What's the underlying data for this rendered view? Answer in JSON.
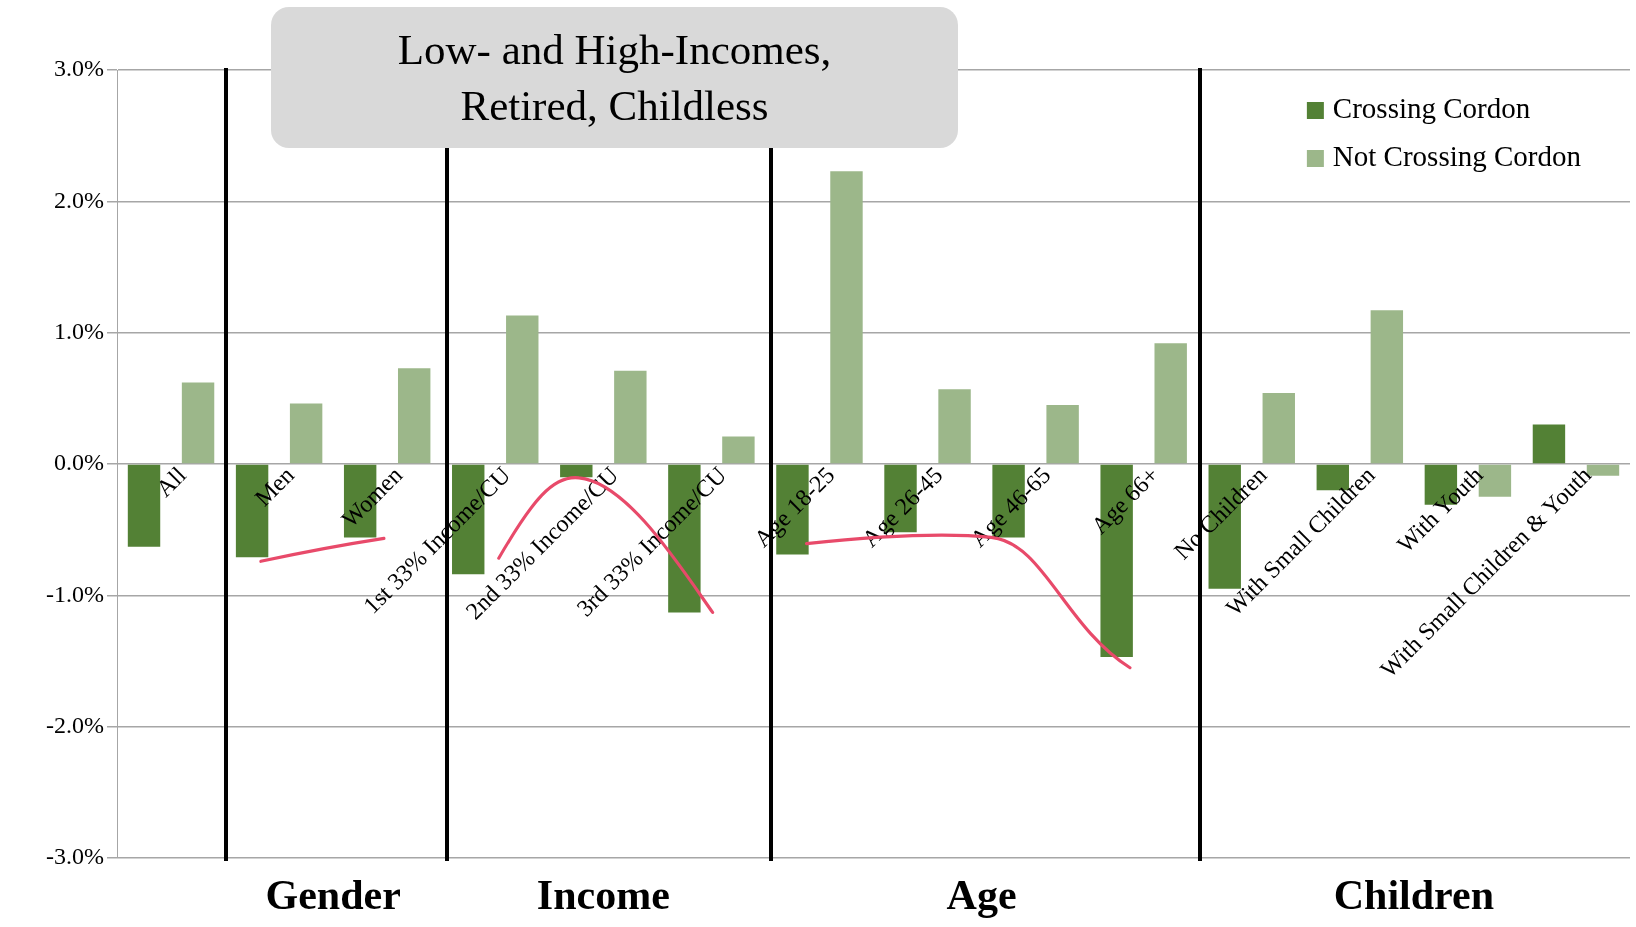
{
  "chart_data": {
    "type": "bar",
    "title": "Low- and High-Incomes, Retired, Childless",
    "categories": [
      "All",
      "Men",
      "Women",
      "1st 33% Income/CU",
      "2nd 33% Income/CU",
      "3rd 33% Income/CU",
      "Age 18-25",
      "Age 26-45",
      "Age 46-65",
      "Age 66+",
      "No Children",
      "With Small Children",
      "With Youth",
      "With Small Children & Youth"
    ],
    "series": [
      {
        "name": "Crossing Cordon",
        "color": "#538135",
        "values": [
          -0.63,
          -0.71,
          -0.56,
          -0.84,
          -0.1,
          -1.13,
          -0.69,
          -0.52,
          -0.56,
          -1.47,
          -0.95,
          -0.2,
          -0.31,
          0.3
        ]
      },
      {
        "name": "Not Crossing Cordon",
        "color": "#9cb78a",
        "values": [
          0.62,
          0.46,
          0.73,
          1.13,
          0.71,
          0.21,
          2.23,
          0.57,
          0.45,
          0.92,
          0.54,
          1.17,
          -0.25,
          -0.09
        ]
      }
    ],
    "ylim": [
      -3,
      3
    ],
    "yticks": [
      {
        "value": -3,
        "label": "-3.0%"
      },
      {
        "value": -2,
        "label": "-2.0%"
      },
      {
        "value": -1,
        "label": "-1.0%"
      },
      {
        "value": 0,
        "label": "0.0%"
      },
      {
        "value": 1,
        "label": "1.0%"
      },
      {
        "value": 2,
        "label": "2.0%"
      },
      {
        "value": 3,
        "label": "3.0%"
      }
    ],
    "grid": "y",
    "legend": "top right",
    "annotations": [
      "Gender",
      "Income",
      "Age",
      "Children"
    ]
  }
}
